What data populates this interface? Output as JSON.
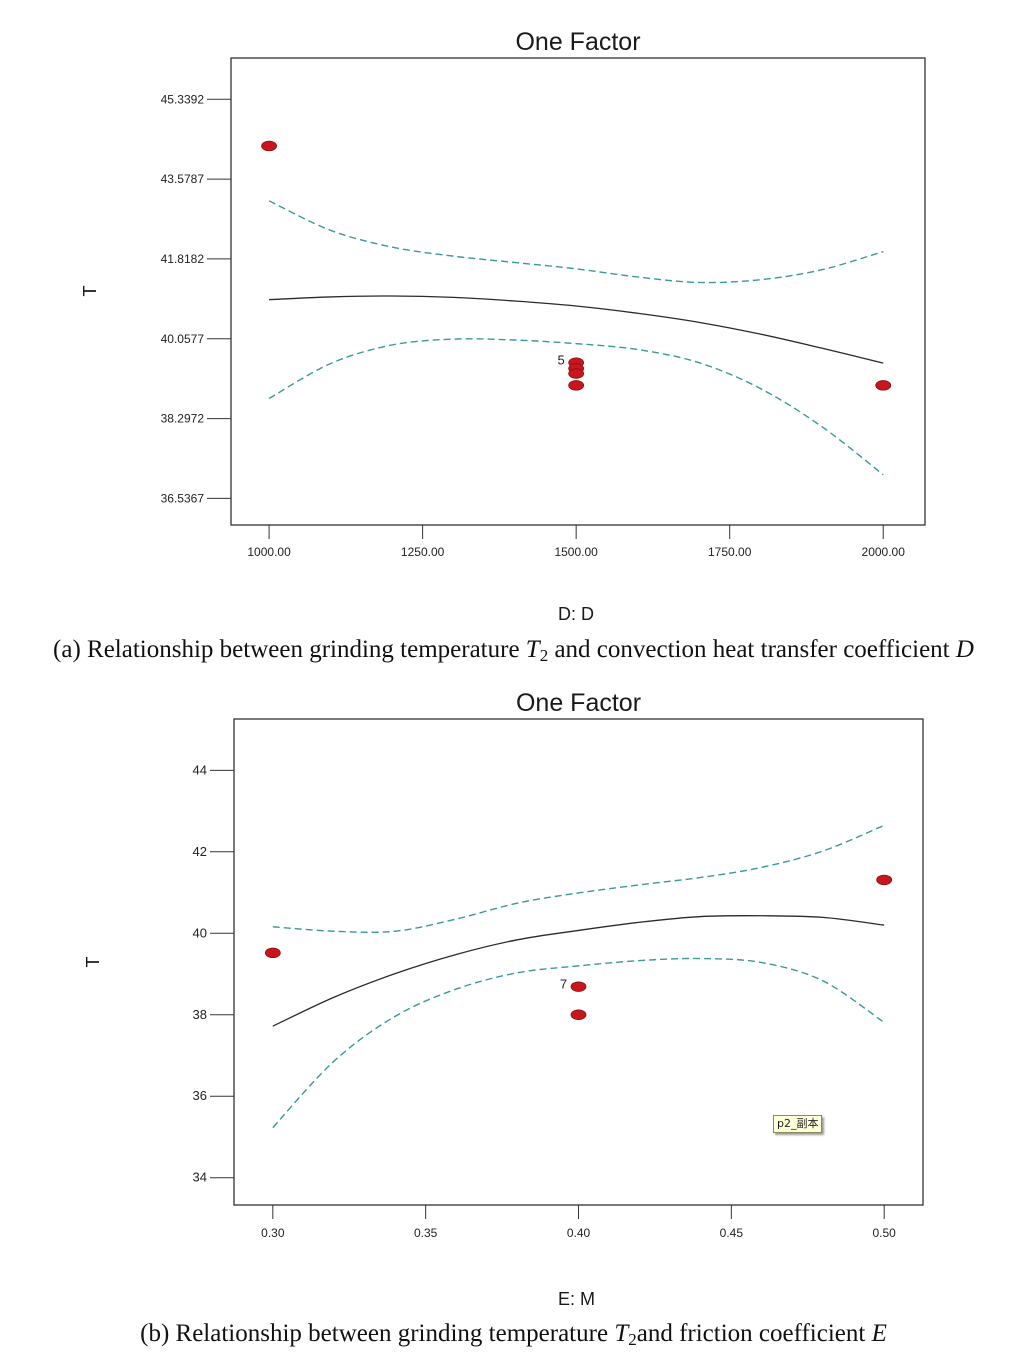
{
  "chart_data": [
    {
      "type": "line",
      "title": "One Factor",
      "xlabel": "D: D",
      "ylabel": "T",
      "xlim": [
        938,
        2068
      ],
      "ylim": [
        35.95,
        46.25
      ],
      "x_ticks": [
        1000,
        1250,
        1500,
        1750,
        2000
      ],
      "x_tick_labels": [
        "1000.00",
        "1250.00",
        "1500.00",
        "1750.00",
        "2000.00"
      ],
      "y_ticks": [
        45.3392,
        43.5787,
        41.8182,
        40.0577,
        38.2972,
        36.5367
      ],
      "y_tick_labels": [
        "45.3392",
        "43.5787",
        "41.8182",
        "40.0577",
        "38.2972",
        "36.5367"
      ],
      "grid": false,
      "series": [
        {
          "role": "fit",
          "style": "solid",
          "color": "#2b2b2b",
          "x": [
            1000,
            1100,
            1200,
            1300,
            1400,
            1500,
            1600,
            1700,
            1800,
            1900,
            2000
          ],
          "y": [
            40.92,
            40.98,
            41.0,
            40.97,
            40.89,
            40.78,
            40.62,
            40.42,
            40.16,
            39.85,
            39.52
          ]
        },
        {
          "role": "upper-ci",
          "style": "dashed",
          "color": "#3a9a96",
          "x": [
            1000,
            1100,
            1200,
            1300,
            1400,
            1500,
            1600,
            1700,
            1800,
            1900,
            2000
          ],
          "y": [
            43.1,
            42.45,
            42.08,
            41.88,
            41.74,
            41.6,
            41.42,
            41.3,
            41.36,
            41.58,
            41.98
          ]
        },
        {
          "role": "lower-ci",
          "style": "dashed",
          "color": "#3a9a96",
          "x": [
            1000,
            1100,
            1200,
            1300,
            1400,
            1500,
            1600,
            1700,
            1800,
            1900,
            2000
          ],
          "y": [
            38.74,
            39.51,
            39.92,
            40.05,
            40.03,
            39.95,
            39.82,
            39.53,
            38.96,
            38.12,
            37.06
          ]
        }
      ],
      "points": [
        {
          "x": 1000,
          "y": 44.31
        },
        {
          "x": 1500,
          "y": 39.53
        },
        {
          "x": 1500,
          "y": 39.4
        },
        {
          "x": 1500,
          "y": 39.29
        },
        {
          "x": 1500,
          "y": 39.03
        },
        {
          "x": 2000,
          "y": 39.03
        }
      ],
      "point_color": "#c8171c",
      "annotations": [
        {
          "text": "5",
          "x": 1500,
          "y": 39.53
        }
      ]
    },
    {
      "type": "line",
      "title": "One Factor",
      "xlabel": "E: M",
      "ylabel": "T",
      "xlim": [
        0.2873,
        0.5127
      ],
      "ylim": [
        33.33,
        45.26
      ],
      "x_ticks": [
        0.3,
        0.35,
        0.4,
        0.45,
        0.5
      ],
      "x_tick_labels": [
        "0.30",
        "0.35",
        "0.40",
        "0.45",
        "0.50"
      ],
      "y_ticks": [
        44,
        42,
        40,
        38,
        36,
        34
      ],
      "y_tick_labels": [
        "44",
        "42",
        "40",
        "38",
        "36",
        "34"
      ],
      "grid": false,
      "series": [
        {
          "role": "fit",
          "style": "solid",
          "color": "#2b2b2b",
          "x": [
            0.3,
            0.32,
            0.34,
            0.36,
            0.38,
            0.4,
            0.42,
            0.44,
            0.46,
            0.48,
            0.5
          ],
          "y": [
            37.72,
            38.43,
            39.01,
            39.48,
            39.84,
            40.07,
            40.27,
            40.41,
            40.43,
            40.39,
            40.2
          ]
        },
        {
          "role": "upper-ci",
          "style": "dashed",
          "color": "#3a9a96",
          "x": [
            0.3,
            0.32,
            0.34,
            0.36,
            0.38,
            0.4,
            0.42,
            0.44,
            0.46,
            0.48,
            0.5
          ],
          "y": [
            40.16,
            40.05,
            40.05,
            40.35,
            40.74,
            40.99,
            41.19,
            41.37,
            41.62,
            42.02,
            42.65
          ]
        },
        {
          "role": "lower-ci",
          "style": "dashed",
          "color": "#3a9a96",
          "x": [
            0.3,
            0.32,
            0.34,
            0.36,
            0.38,
            0.4,
            0.42,
            0.44,
            0.46,
            0.48,
            0.5
          ],
          "y": [
            35.23,
            36.86,
            37.96,
            38.63,
            39.03,
            39.2,
            39.33,
            39.38,
            39.28,
            38.83,
            37.81
          ]
        }
      ],
      "points": [
        {
          "x": 0.3,
          "y": 39.52
        },
        {
          "x": 0.4,
          "y": 38.69
        },
        {
          "x": 0.4,
          "y": 38.0
        },
        {
          "x": 0.5,
          "y": 41.31
        }
      ],
      "point_color": "#c8171c",
      "annotations": [
        {
          "text": "7",
          "x": 0.4,
          "y": 38.69
        }
      ]
    }
  ],
  "captions": {
    "a": {
      "prefix": "(a) Relationship between grinding temperature ",
      "var": "T",
      "sub": "2",
      "middle": " and convection heat transfer coefficient ",
      "end": "D"
    },
    "b": {
      "prefix": "(b) Relationship between grinding temperature ",
      "var": "T",
      "sub": "2",
      "middle": "and friction coefficient ",
      "end": "E"
    }
  },
  "sticky_note": "p2_副本"
}
